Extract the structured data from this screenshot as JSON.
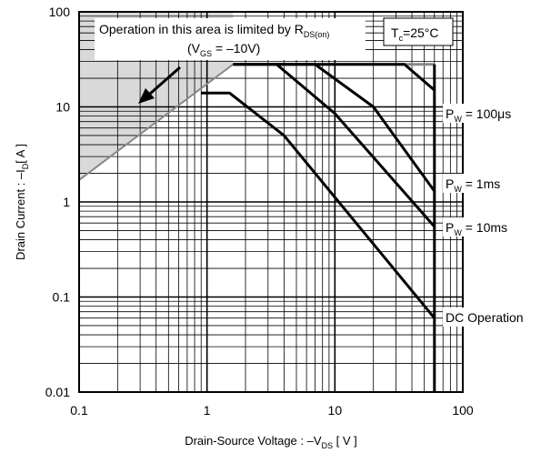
{
  "chart_data": {
    "type": "line",
    "xscale": "log",
    "yscale": "log",
    "xlim": [
      0.1,
      100
    ],
    "ylim": [
      0.01,
      100
    ],
    "grid": true,
    "x_ticks": [
      "0.1",
      "1",
      "10",
      "100"
    ],
    "y_ticks": [
      "0.01",
      "0.1",
      "1",
      "10",
      "100"
    ],
    "xlabel": {
      "main": "Drain-Source  Voltage : –V",
      "sub": "DS",
      "tail": " [ V ]"
    },
    "ylabel": {
      "main": "Drain  Current : –I",
      "sub": "D",
      "tail": "[ A ]"
    },
    "condition": {
      "main": "T",
      "sub": "c",
      "tail": "=25°C"
    },
    "annotation": {
      "line1_main": "Operation in this area is limited by R",
      "line1_sub": "DS(on)",
      "line2_pre": "(V",
      "line2_sub": "GS",
      "line2_tail": " = –10V)"
    },
    "rdson_limit": {
      "x": [
        0.1,
        1.6
      ],
      "y": [
        1.7,
        28
      ]
    },
    "current_limit": {
      "x": [
        1.6,
        60
      ],
      "y": [
        28,
        28
      ]
    },
    "series": [
      {
        "name": {
          "main": "P",
          "sub": "W",
          "tail": " = 100μs"
        },
        "x": [
          1.6,
          35,
          60
        ],
        "y": [
          28,
          28,
          15
        ]
      },
      {
        "name": {
          "main": "P",
          "sub": "W",
          "tail": " = 1ms"
        },
        "x": [
          3.5,
          7,
          20,
          60
        ],
        "y": [
          28,
          28,
          10,
          1.3
        ]
      },
      {
        "name": {
          "main": "P",
          "sub": "W",
          "tail": " = 10ms"
        },
        "x": [
          1.6,
          3.5,
          10,
          60
        ],
        "y": [
          28,
          28,
          8.5,
          0.55
        ]
      },
      {
        "name": {
          "main": "DC Operation",
          "sub": "",
          "tail": ""
        },
        "x": [
          0.9,
          1.5,
          4,
          60
        ],
        "y": [
          14,
          14,
          5,
          0.06
        ]
      }
    ]
  }
}
